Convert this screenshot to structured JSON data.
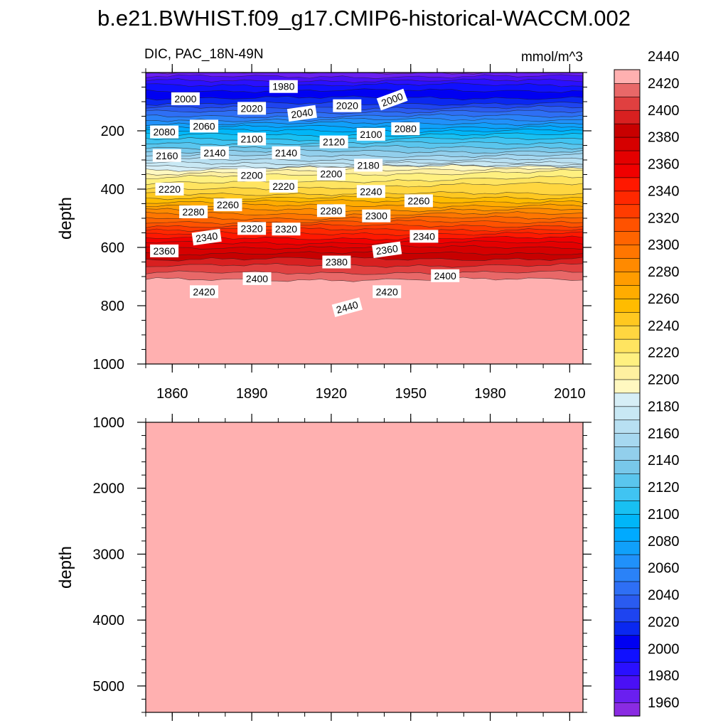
{
  "title": "b.e21.BWHIST.f09_g17.CMIP6-historical-WACCM.002",
  "chart_data": [
    {
      "type": "contour",
      "panel": "upper",
      "left_label": "DIC, PAC_18N-49N",
      "units": "mmol/m^3",
      "ylabel": "depth",
      "xlabel": "",
      "xlim": [
        1850,
        2015
      ],
      "ylim": [
        0,
        1000
      ],
      "y_reversed": true,
      "x_ticks": [
        1860,
        1890,
        1920,
        1950,
        1980,
        2010
      ],
      "x_tick_labels": [
        "1860",
        "1890",
        "1920",
        "1950",
        "1980",
        "2010"
      ],
      "y_ticks": [
        200,
        400,
        600,
        800,
        1000
      ],
      "y_tick_labels": [
        "200",
        "400",
        "600",
        "800",
        "1000"
      ],
      "depth_profile": {
        "depth": [
          0,
          50,
          100,
          150,
          200,
          250,
          300,
          340,
          360,
          400,
          450,
          500,
          550,
          600,
          650,
          700,
          750,
          800,
          830,
          1000
        ],
        "value": [
          1950,
          1985,
          2005,
          2040,
          2080,
          2115,
          2150,
          2185,
          2200,
          2218,
          2255,
          2290,
          2328,
          2360,
          2385,
          2405,
          2428,
          2442,
          2450,
          2450
        ]
      },
      "contour_labels": [
        {
          "text": "1980",
          "year": 1902,
          "depth": 48,
          "angle": 0
        },
        {
          "text": "2000",
          "year": 1865,
          "depth": 90,
          "angle": 0
        },
        {
          "text": "2020",
          "year": 1890,
          "depth": 123,
          "angle": 0
        },
        {
          "text": "2040",
          "year": 1909,
          "depth": 140,
          "angle": -8
        },
        {
          "text": "2020",
          "year": 1926,
          "depth": 114,
          "angle": 0
        },
        {
          "text": "2000",
          "year": 1943,
          "depth": 93,
          "angle": -20
        },
        {
          "text": "2080",
          "year": 1857,
          "depth": 204,
          "angle": 0
        },
        {
          "text": "2060",
          "year": 1872,
          "depth": 184,
          "angle": 0
        },
        {
          "text": "2100",
          "year": 1890,
          "depth": 228,
          "angle": 0
        },
        {
          "text": "2120",
          "year": 1921,
          "depth": 238,
          "angle": 0
        },
        {
          "text": "2100",
          "year": 1935,
          "depth": 212,
          "angle": 0
        },
        {
          "text": "2080",
          "year": 1948,
          "depth": 193,
          "angle": 0
        },
        {
          "text": "2160",
          "year": 1858,
          "depth": 285,
          "angle": 0
        },
        {
          "text": "2140",
          "year": 1876,
          "depth": 275,
          "angle": 0
        },
        {
          "text": "2140",
          "year": 1903,
          "depth": 275,
          "angle": 0
        },
        {
          "text": "2180",
          "year": 1934,
          "depth": 318,
          "angle": 0
        },
        {
          "text": "2200",
          "year": 1890,
          "depth": 352,
          "angle": 0
        },
        {
          "text": "2200",
          "year": 1920,
          "depth": 348,
          "angle": 0
        },
        {
          "text": "2220",
          "year": 1859,
          "depth": 400,
          "angle": 0
        },
        {
          "text": "2220",
          "year": 1902,
          "depth": 390,
          "angle": 0
        },
        {
          "text": "2240",
          "year": 1935,
          "depth": 408,
          "angle": 0
        },
        {
          "text": "2260",
          "year": 1881,
          "depth": 454,
          "angle": 0
        },
        {
          "text": "2260",
          "year": 1953,
          "depth": 440,
          "angle": 0
        },
        {
          "text": "2280",
          "year": 1868,
          "depth": 478,
          "angle": 0
        },
        {
          "text": "2280",
          "year": 1920,
          "depth": 474,
          "angle": 0
        },
        {
          "text": "2300",
          "year": 1937,
          "depth": 492,
          "angle": 0
        },
        {
          "text": "2320",
          "year": 1890,
          "depth": 535,
          "angle": 0
        },
        {
          "text": "2320",
          "year": 1903,
          "depth": 537,
          "angle": 0
        },
        {
          "text": "2340",
          "year": 1873,
          "depth": 565,
          "angle": -8
        },
        {
          "text": "2340",
          "year": 1955,
          "depth": 562,
          "angle": 0
        },
        {
          "text": "2360",
          "year": 1857,
          "depth": 612,
          "angle": 0
        },
        {
          "text": "2360",
          "year": 1941,
          "depth": 608,
          "angle": -8
        },
        {
          "text": "2380",
          "year": 1922,
          "depth": 650,
          "angle": 0
        },
        {
          "text": "2400",
          "year": 1892,
          "depth": 707,
          "angle": 0
        },
        {
          "text": "2400",
          "year": 1963,
          "depth": 697,
          "angle": 0
        },
        {
          "text": "2420",
          "year": 1872,
          "depth": 752,
          "angle": 0
        },
        {
          "text": "2420",
          "year": 1941,
          "depth": 752,
          "angle": 0
        },
        {
          "text": "2440",
          "year": 1926,
          "depth": 805,
          "angle": -15
        }
      ]
    },
    {
      "type": "contour",
      "panel": "lower",
      "ylabel": "depth",
      "xlim": [
        1850,
        2015
      ],
      "ylim": [
        1000,
        5400
      ],
      "y_reversed": true,
      "y_ticks": [
        1000,
        2000,
        3000,
        4000,
        5000
      ],
      "y_tick_labels": [
        "1000",
        "2000",
        "3000",
        "4000",
        "5000"
      ],
      "x_ticks": [
        1860,
        1890,
        1920,
        1950,
        1980,
        2010
      ],
      "fill_value": 2450,
      "fill_color": "#ffb0b0"
    }
  ],
  "colorbar": {
    "labels": [
      "1960",
      "1980",
      "2000",
      "2020",
      "2040",
      "2060",
      "2080",
      "2100",
      "2120",
      "2140",
      "2160",
      "2180",
      "2200",
      "2220",
      "2240",
      "2260",
      "2280",
      "2300",
      "2320",
      "2340",
      "2360",
      "2380",
      "2400",
      "2420",
      "2440"
    ],
    "levels_start": 1950,
    "levels_step": 10,
    "colors": [
      "#8a2be2",
      "#6a1ff0",
      "#4a10f5",
      "#2a10ff",
      "#1010ff",
      "#0000f2",
      "#0a28f0",
      "#1e44f0",
      "#2a5bf0",
      "#2e6ff5",
      "#2a82f8",
      "#2091fa",
      "#10a0fa",
      "#00aaff",
      "#00b6f8",
      "#18c0f2",
      "#40c4f2",
      "#5ac6ee",
      "#78c8ea",
      "#92cfec",
      "#a6d8f0",
      "#b8e0f2",
      "#c8e8f4",
      "#d6eef6",
      "#fff8c0",
      "#fff0a0",
      "#fff080",
      "#ffe460",
      "#ffd640",
      "#ffc820",
      "#ffbc00",
      "#ffac00",
      "#ff9c00",
      "#ff8a00",
      "#ff7600",
      "#ff6400",
      "#ff5200",
      "#ff3c00",
      "#ff2800",
      "#ff1800",
      "#f00000",
      "#e40000",
      "#d60000",
      "#c80000",
      "#d82020",
      "#e04040",
      "#e86868",
      "#ffb0b0"
    ]
  }
}
